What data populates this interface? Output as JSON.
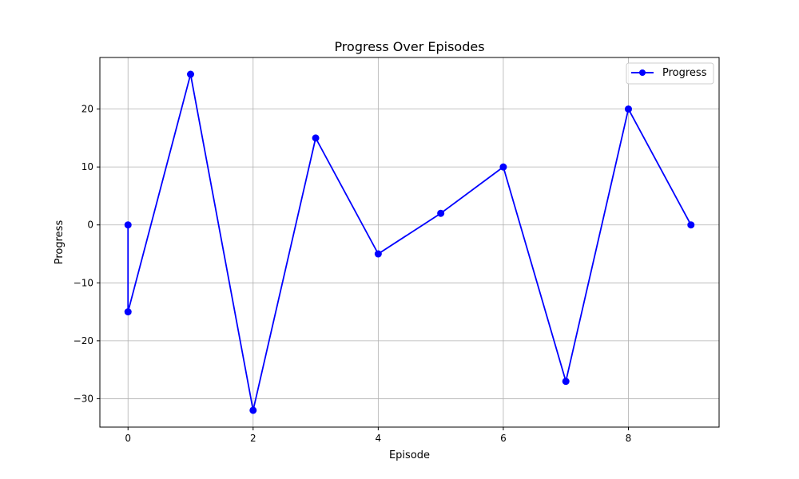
{
  "chart_data": {
    "type": "line",
    "title": "Progress Over Episodes",
    "xlabel": "Episode",
    "ylabel": "Progress",
    "xlim": [
      -0.45,
      9.45
    ],
    "ylim": [
      -34.9,
      28.9
    ],
    "xticks": [
      0,
      2,
      4,
      6,
      8
    ],
    "xtick_labels": [
      "0",
      "2",
      "4",
      "6",
      "8"
    ],
    "yticks": [
      -30,
      -20,
      -10,
      0,
      10,
      20
    ],
    "ytick_labels": [
      "−30",
      "−20",
      "−10",
      "0",
      "10",
      "20"
    ],
    "grid": true,
    "legend_position": "top-right",
    "series": [
      {
        "name": "Progress",
        "color": "#0000ff",
        "marker": "circle",
        "x": [
          0,
          0,
          1,
          2,
          3,
          4,
          5,
          6,
          7,
          8,
          9
        ],
        "y": [
          0,
          -15,
          26,
          -32,
          15,
          -5,
          2,
          10,
          -27,
          20,
          0
        ]
      }
    ]
  }
}
